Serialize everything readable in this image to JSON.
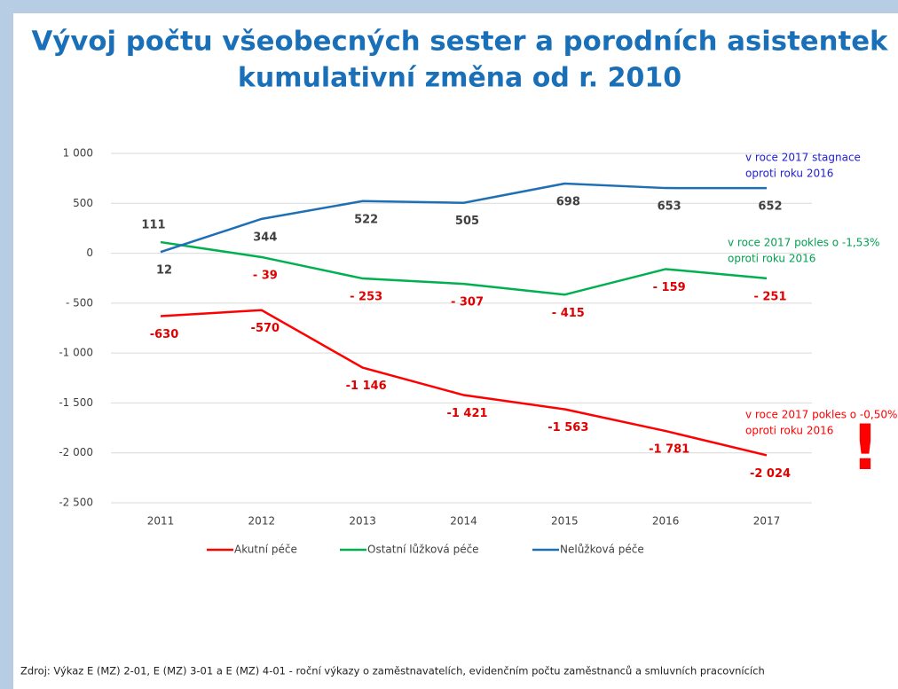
{
  "chart_data": {
    "type": "line",
    "title": "Vývoj počtu všeobecných sester a porodních asistentek",
    "subtitle": "kumulativní změna od r. 2010",
    "categories": [
      "2011",
      "2012",
      "2013",
      "2014",
      "2015",
      "2016",
      "2017"
    ],
    "series": [
      {
        "name": "Akutní péče",
        "color": "#ff0000",
        "label_color": "#e00000",
        "values": [
          -630,
          -570,
          -1146,
          -1421,
          -1563,
          -1781,
          -2024
        ],
        "value_labels": [
          "-630",
          "-570",
          "-1 146",
          "-1 421",
          "-1 563",
          "-1 781",
          "-2 024"
        ]
      },
      {
        "name": "Ostatní lůžková péče",
        "color": "#00b050",
        "label_color": "#e00000",
        "values": [
          111,
          -39,
          -253,
          -307,
          -415,
          -159,
          -251
        ],
        "value_labels": [
          "111",
          "- 39",
          "- 253",
          "- 307",
          "- 415",
          "- 159",
          "- 251"
        ]
      },
      {
        "name": "Nelůžková péče",
        "color": "#1f6fb5",
        "label_color": "#404040",
        "values": [
          12,
          344,
          522,
          505,
          698,
          653,
          652
        ]
      }
    ],
    "ylim": [
      -2500,
      1000
    ],
    "yticks": [
      {
        "value": 1000,
        "label": "1 000"
      },
      500,
      0,
      {
        "value": -500,
        "label": "- 500"
      },
      {
        "value": -1000,
        "label": "-1 000"
      },
      {
        "value": -1500,
        "label": "-1 500"
      },
      {
        "value": -2000,
        "label": "-2 000"
      },
      {
        "value": -2500,
        "label": "-2 500"
      }
    ],
    "grid": true,
    "annotations": [
      {
        "lines": [
          "v roce 2017 stagnace",
          "oproti roku 2016"
        ],
        "color": "#2020d0"
      },
      {
        "lines": [
          "v roce 2017 pokles o -1,53%",
          "oproti roku 2016"
        ],
        "color": "#00a050"
      },
      {
        "lines": [
          "v roce 2017 pokles o -0,50%",
          "oproti roku 2016"
        ],
        "color": "#ff0000"
      },
      {
        "lines": [
          "!"
        ],
        "color": "#ff0000"
      }
    ],
    "source": "Zdroj: Výkaz E (MZ) 2-01, E (MZ) 3-01 a E (MZ) 4-01 - roční výkazy o zaměstnavatelích, evidenčním počtu zaměstnanců a smluvních pracovnících"
  }
}
